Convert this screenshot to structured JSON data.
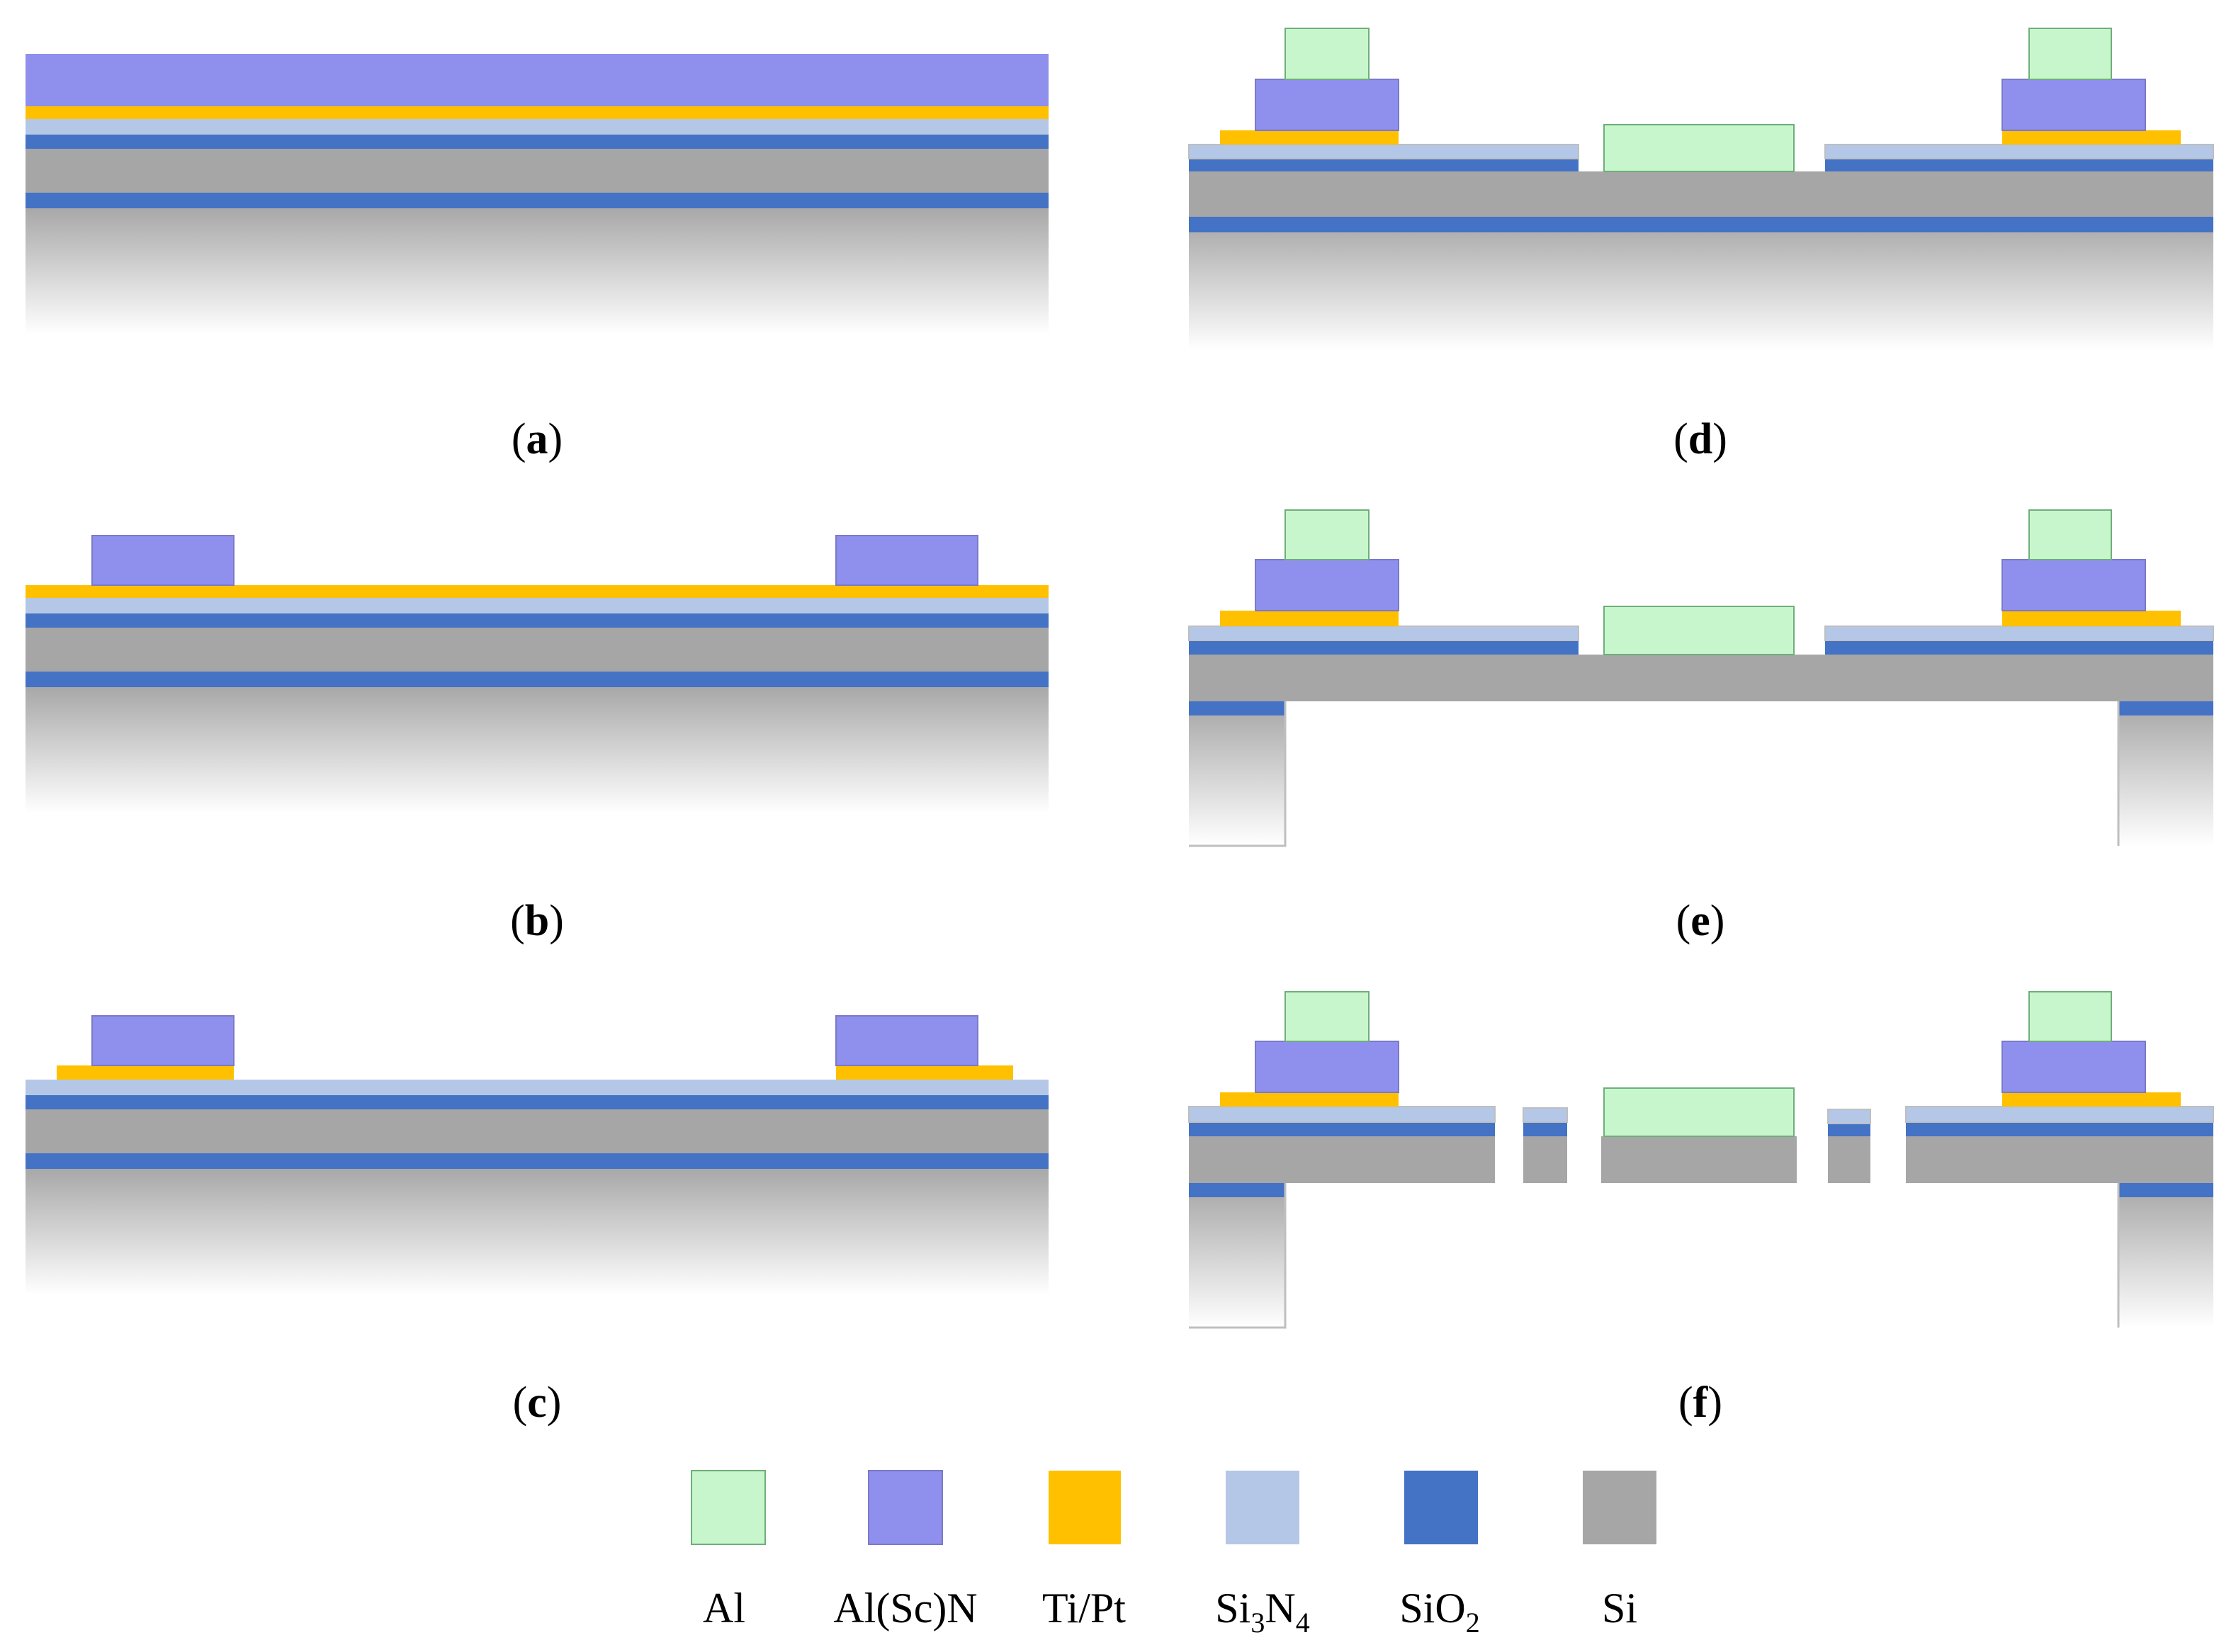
{
  "colors": {
    "al": "#C8F6CC",
    "al_stroke": "#6FAE7A",
    "alscn": "#8F8FEE",
    "alscn_stroke": "#7A7AC8",
    "tipt": "#FFC000",
    "si3n4": "#B4C7E7",
    "sio2": "#4472C4",
    "si": "#A6A6A6",
    "edge": "#BFBFBF"
  },
  "panels": [
    {
      "id": "a",
      "label": "a"
    },
    {
      "id": "b",
      "label": "b"
    },
    {
      "id": "c",
      "label": "c"
    },
    {
      "id": "d",
      "label": "d"
    },
    {
      "id": "e",
      "label": "e"
    },
    {
      "id": "f",
      "label": "f"
    }
  ],
  "legend": [
    {
      "key": "al",
      "icon": "al-swatch",
      "label": "Al"
    },
    {
      "key": "alscn",
      "icon": "alscn-swatch",
      "label": "Al(Sc)N"
    },
    {
      "key": "tipt",
      "icon": "tipt-swatch",
      "label": "Ti/Pt"
    },
    {
      "key": "si3n4",
      "icon": "si3n4-swatch",
      "label_parts": [
        "Si",
        "3",
        "N",
        "4"
      ],
      "label": "Si3N4"
    },
    {
      "key": "sio2",
      "icon": "sio2-swatch",
      "label_parts": [
        "SiO",
        "2"
      ],
      "label": "SiO2"
    },
    {
      "key": "si",
      "icon": "si-swatch",
      "label": "Si"
    }
  ]
}
